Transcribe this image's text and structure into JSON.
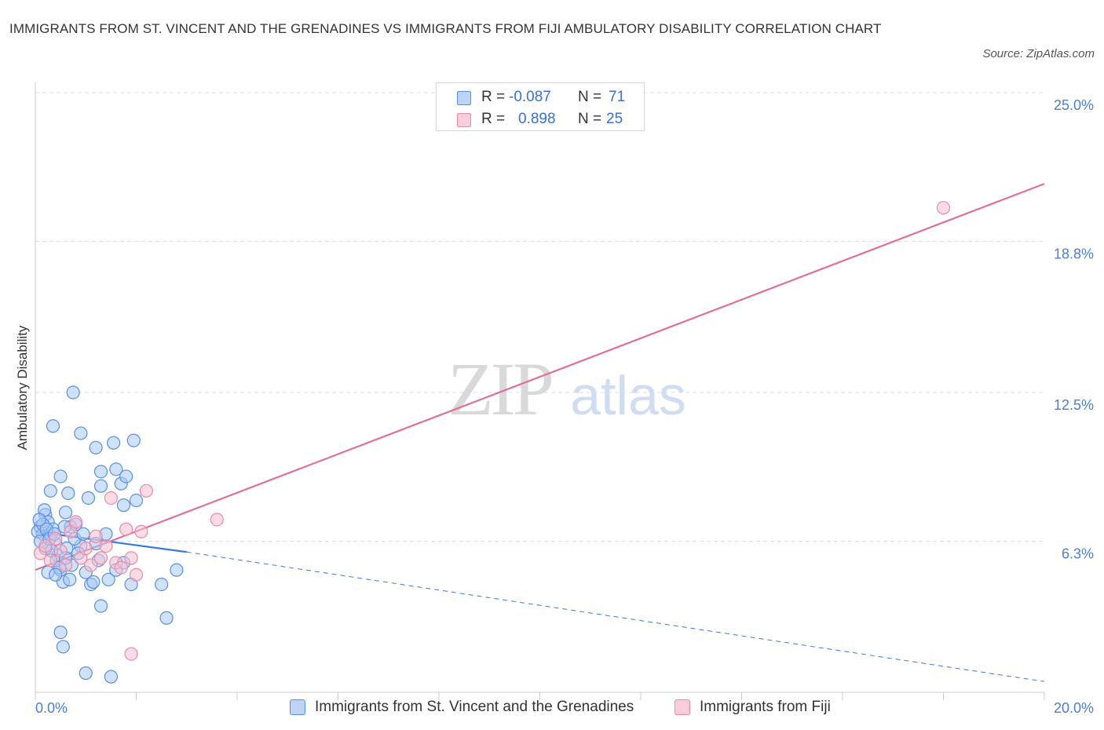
{
  "header": {
    "title": "IMMIGRANTS FROM ST. VINCENT AND THE GRENADINES VS IMMIGRANTS FROM FIJI AMBULATORY DISABILITY CORRELATION CHART",
    "source": "Source: ZipAtlas.com"
  },
  "legend": {
    "r_label": "R =",
    "n_label": "N =",
    "series": [
      {
        "r": "-0.087",
        "n": "71"
      },
      {
        "r": "0.898",
        "n": "25"
      }
    ]
  },
  "bottom_legend": [
    {
      "label": "Immigrants from St. Vincent and the Grenadines"
    },
    {
      "label": "Immigrants from Fiji"
    }
  ],
  "watermark": {
    "zip": "ZIP",
    "atlas": "atlas"
  },
  "colors": {
    "blue_fill": "#a9c8f5",
    "blue_stroke": "#5a8fe0",
    "blue_line": "#3b78d8",
    "pink_fill": "#f7bfd0",
    "pink_stroke": "#e88aa8",
    "pink_line": "#e07098",
    "grid": "#dddddd",
    "tick": "#4a7fd4"
  },
  "chart_data": {
    "type": "scatter",
    "title": "IMMIGRANTS FROM ST. VINCENT AND THE GRENADINES VS IMMIGRANTS FROM FIJI AMBULATORY DISABILITY CORRELATION CHART",
    "xlabel": "",
    "ylabel": "Ambulatory Disability",
    "xlim": [
      0,
      20
    ],
    "ylim": [
      0,
      25
    ],
    "x_tick_labels": [
      "0.0%",
      "20.0%"
    ],
    "y_ticks": [
      6.3,
      12.5,
      18.8,
      25.0
    ],
    "y_tick_labels": [
      "6.3%",
      "12.5%",
      "18.8%",
      "25.0%"
    ],
    "series": [
      {
        "name": "Immigrants from St. Vincent and the Grenadines",
        "color": "#5a8fe0",
        "r": -0.087,
        "n": 71,
        "trend": {
          "x0": 0.0,
          "y0": 6.7,
          "x1_solid": 3.0,
          "y1_solid": 5.85,
          "x1": 20.0,
          "y1": 0.45
        },
        "points": [
          [
            0.1,
            6.9
          ],
          [
            0.15,
            6.6
          ],
          [
            0.2,
            7.4
          ],
          [
            0.25,
            7.1
          ],
          [
            0.3,
            6.5
          ],
          [
            0.35,
            6.8
          ],
          [
            0.4,
            6.2
          ],
          [
            0.45,
            5.7
          ],
          [
            0.5,
            5.1
          ],
          [
            0.55,
            4.6
          ],
          [
            0.3,
            8.4
          ],
          [
            0.6,
            7.5
          ],
          [
            0.7,
            6.9
          ],
          [
            0.8,
            7.0
          ],
          [
            0.9,
            6.1
          ],
          [
            1.0,
            5.0
          ],
          [
            0.5,
            9.0
          ],
          [
            0.65,
            8.3
          ],
          [
            0.35,
            11.1
          ],
          [
            0.75,
            12.5
          ],
          [
            0.9,
            10.8
          ],
          [
            1.05,
            8.1
          ],
          [
            1.2,
            10.2
          ],
          [
            1.3,
            9.2
          ],
          [
            1.4,
            6.6
          ],
          [
            1.3,
            8.6
          ],
          [
            1.55,
            10.4
          ],
          [
            1.7,
            8.7
          ],
          [
            1.75,
            7.8
          ],
          [
            1.6,
            9.3
          ],
          [
            1.8,
            9.0
          ],
          [
            1.95,
            10.5
          ],
          [
            2.0,
            8.0
          ],
          [
            1.2,
            6.2
          ],
          [
            1.1,
            4.5
          ],
          [
            1.3,
            3.6
          ],
          [
            1.45,
            4.7
          ],
          [
            1.6,
            5.1
          ],
          [
            1.75,
            5.4
          ],
          [
            1.9,
            4.5
          ],
          [
            2.5,
            4.5
          ],
          [
            2.6,
            3.1
          ],
          [
            2.8,
            5.1
          ],
          [
            0.5,
            2.5
          ],
          [
            0.55,
            1.9
          ],
          [
            1.0,
            0.8
          ],
          [
            1.5,
            0.65
          ],
          [
            0.05,
            6.7
          ],
          [
            0.1,
            6.3
          ],
          [
            0.15,
            7.0
          ],
          [
            0.2,
            6.0
          ],
          [
            0.22,
            6.8
          ],
          [
            0.28,
            6.4
          ],
          [
            0.32,
            5.9
          ],
          [
            0.38,
            6.6
          ],
          [
            0.42,
            5.5
          ],
          [
            0.48,
            5.2
          ],
          [
            0.58,
            6.9
          ],
          [
            0.62,
            6.0
          ],
          [
            0.68,
            4.7
          ],
          [
            0.72,
            5.3
          ],
          [
            0.78,
            6.4
          ],
          [
            0.85,
            5.8
          ],
          [
            0.95,
            6.6
          ],
          [
            1.15,
            4.6
          ],
          [
            1.25,
            5.5
          ],
          [
            0.18,
            7.6
          ],
          [
            0.08,
            7.2
          ],
          [
            0.25,
            5.0
          ],
          [
            0.4,
            4.9
          ],
          [
            0.6,
            5.6
          ]
        ]
      },
      {
        "name": "Immigrants from Fiji",
        "color": "#e88aa8",
        "r": 0.898,
        "n": 25,
        "trend": {
          "x0": 0.0,
          "y0": 5.1,
          "x1": 20.0,
          "y1": 21.2
        },
        "points": [
          [
            0.1,
            5.8
          ],
          [
            0.2,
            6.1
          ],
          [
            0.3,
            5.5
          ],
          [
            0.4,
            6.4
          ],
          [
            0.5,
            5.9
          ],
          [
            0.6,
            5.3
          ],
          [
            0.7,
            6.7
          ],
          [
            0.8,
            7.1
          ],
          [
            0.9,
            5.6
          ],
          [
            1.0,
            6.0
          ],
          [
            1.1,
            5.3
          ],
          [
            1.2,
            6.5
          ],
          [
            1.3,
            5.6
          ],
          [
            1.4,
            6.1
          ],
          [
            1.5,
            8.1
          ],
          [
            1.6,
            5.4
          ],
          [
            1.7,
            5.2
          ],
          [
            1.8,
            6.8
          ],
          [
            1.9,
            5.6
          ],
          [
            2.0,
            4.9
          ],
          [
            2.1,
            6.7
          ],
          [
            2.2,
            8.4
          ],
          [
            3.6,
            7.2
          ],
          [
            1.9,
            1.6
          ],
          [
            18.0,
            20.2
          ]
        ]
      }
    ]
  }
}
